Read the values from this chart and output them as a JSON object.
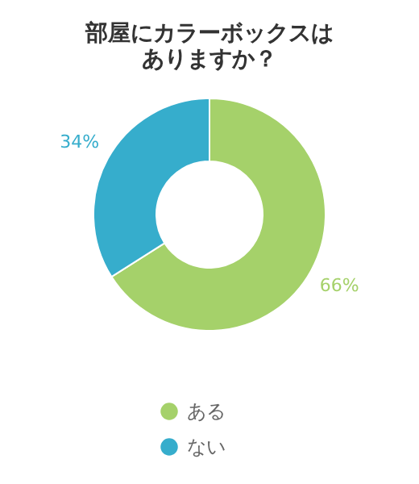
{
  "chart_data": {
    "type": "donut",
    "title": "部屋にカラーボックスはありますか？",
    "categories": [
      "ある",
      "ない"
    ],
    "values": [
      66,
      34
    ],
    "colors": [
      "#a5d16a",
      "#36adcc"
    ],
    "value_labels": [
      "66%",
      "34%"
    ],
    "legend": "bottom"
  }
}
